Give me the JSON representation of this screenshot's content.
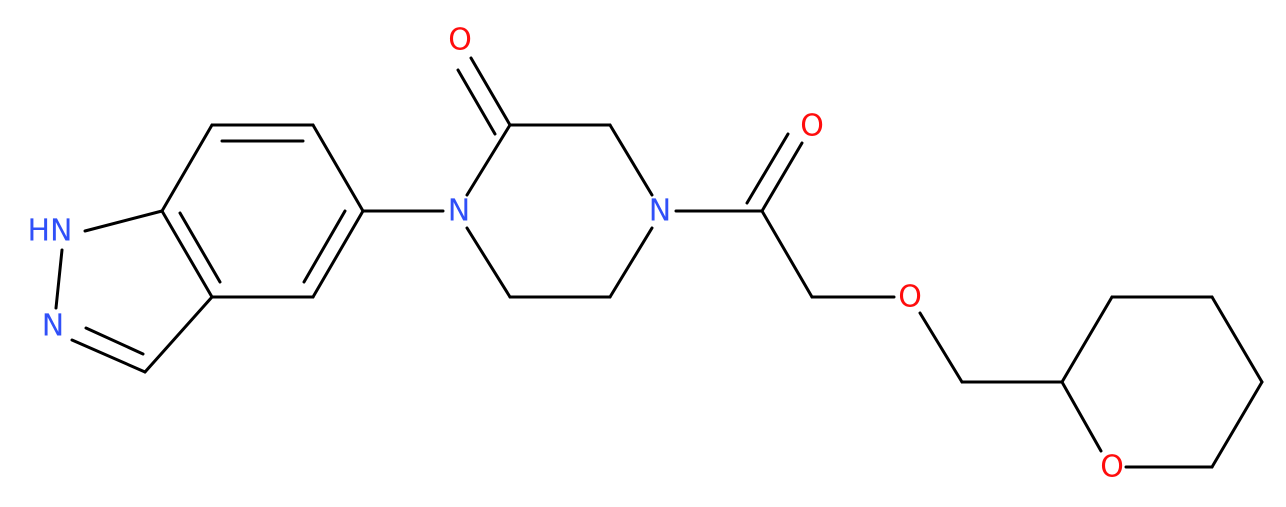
{
  "atoms": [
    {
      "label": "O"
    },
    {
      "label": "O"
    },
    {
      "label": "O"
    },
    {
      "label": "O"
    },
    {
      "label": "N"
    },
    {
      "label": "N"
    },
    {
      "label": "HN"
    },
    {
      "label": "N"
    }
  ]
}
